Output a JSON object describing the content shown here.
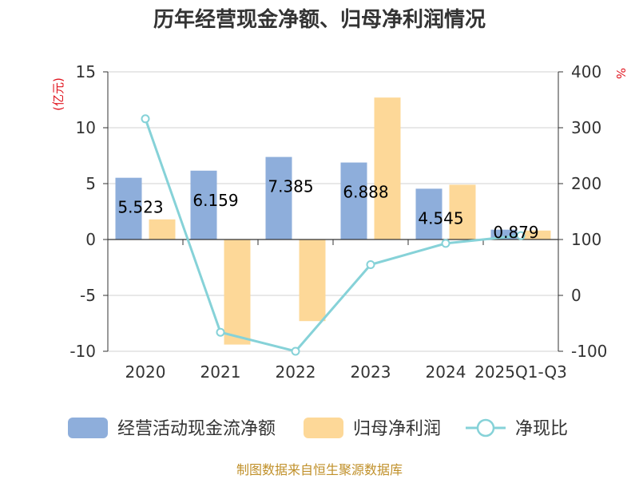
{
  "chart_data": {
    "type": "bar",
    "title": "历年经营现金净额、归母净利润情况",
    "categories": [
      "2020",
      "2021",
      "2022",
      "2023",
      "2024",
      "2025Q1-Q3"
    ],
    "series": [
      {
        "name": "经营活动现金流净额",
        "type": "bar",
        "axis": "left",
        "color": "#8eaedb",
        "values": [
          5.523,
          6.159,
          7.385,
          6.888,
          4.545,
          0.879
        ],
        "labels": [
          "5.523",
          "6.159",
          "7.385",
          "6.888",
          "4.545",
          "0.879"
        ]
      },
      {
        "name": "归母净利润",
        "type": "bar",
        "axis": "left",
        "color": "#fdd898",
        "values": [
          1.8,
          -9.4,
          -7.3,
          12.7,
          4.9,
          0.8
        ]
      },
      {
        "name": "净现比",
        "type": "line",
        "axis": "right",
        "color": "#86d2d8",
        "values": [
          316,
          -66,
          -100,
          55,
          93,
          107
        ]
      }
    ],
    "y_left": {
      "unit": "(亿元)",
      "ylim": [
        -10,
        15
      ],
      "ticks": [
        "-10",
        "-5",
        "0",
        "5",
        "10",
        "15"
      ]
    },
    "y_right": {
      "unit": "%",
      "ylim": [
        -100,
        400
      ],
      "ticks": [
        "-100",
        "0",
        "100",
        "200",
        "300",
        "400"
      ]
    },
    "grid": true,
    "legend_position": "bottom",
    "source": "制图数据来自恒生聚源数据库"
  }
}
